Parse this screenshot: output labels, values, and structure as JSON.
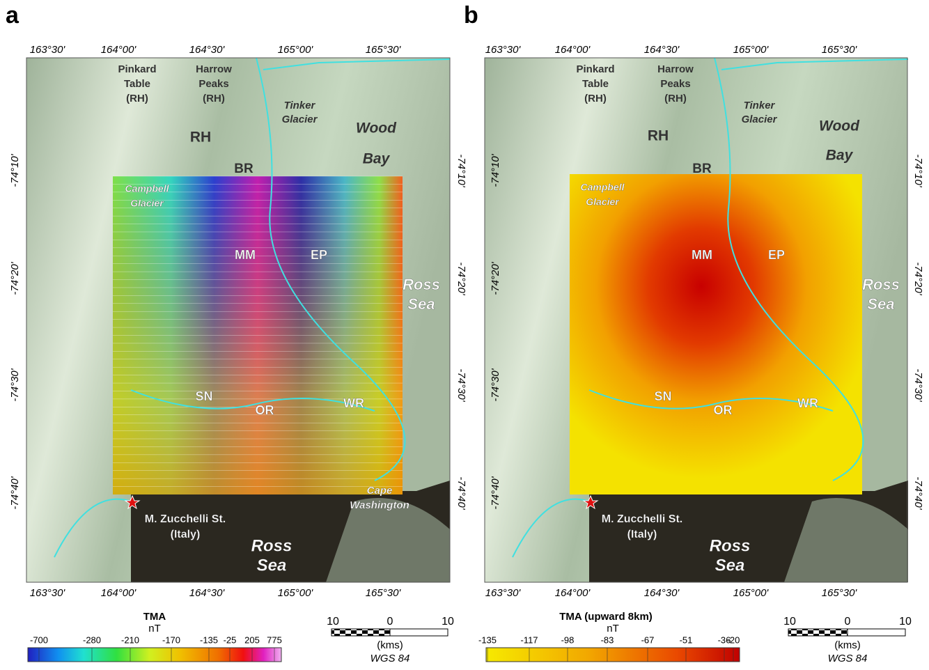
{
  "panels": [
    {
      "letter": "a",
      "lon_labels": [
        "163°30'",
        "164°00'",
        "164°30'",
        "165°00'",
        "165°30'"
      ],
      "lat_labels": [
        "-74°10'",
        "-74°20'",
        "-74°30'",
        "-74°40'"
      ],
      "places": [
        {
          "lines": [
            "Pinkard",
            "Table",
            "(RH)"
          ]
        },
        {
          "lines": [
            "Harrow",
            "Peaks",
            "(RH)"
          ]
        },
        {
          "lines": [
            "Tinker",
            "Glacier"
          ]
        },
        {
          "lines": [
            "Wood",
            "Bay"
          ]
        },
        {
          "lines": [
            "RH"
          ]
        },
        {
          "lines": [
            "BR"
          ]
        },
        {
          "lines": [
            "Campbell",
            "Glacier"
          ]
        },
        {
          "lines": [
            "MM"
          ]
        },
        {
          "lines": [
            "EP"
          ]
        },
        {
          "lines": [
            "Ross",
            "Sea"
          ]
        },
        {
          "lines": [
            "SN"
          ]
        },
        {
          "lines": [
            "OR"
          ]
        },
        {
          "lines": [
            "WR"
          ]
        },
        {
          "lines": [
            "Cape",
            "Washington"
          ]
        },
        {
          "lines": [
            "M. Zucchelli St.",
            "(Italy)"
          ]
        },
        {
          "lines": [
            "Ross",
            "Sea"
          ]
        }
      ],
      "colorbar": {
        "title": "TMA",
        "unit": "nT",
        "ticks": [
          -700,
          -280,
          -210,
          -170,
          -135,
          -25,
          205,
          775
        ]
      },
      "scalebar": {
        "left": "10",
        "mid": "0",
        "right": "10",
        "unit": "(kms)",
        "datum": "WGS 84"
      }
    },
    {
      "letter": "b",
      "lon_labels": [
        "163°30'",
        "164°00'",
        "164°30'",
        "165°00'",
        "165°30'"
      ],
      "lat_labels": [
        "-74°10'",
        "-74°20'",
        "-74°30'",
        "-74°40'"
      ],
      "places": [
        {
          "lines": [
            "Pinkard",
            "Table",
            "(RH)"
          ]
        },
        {
          "lines": [
            "Harrow",
            "Peaks",
            "(RH)"
          ]
        },
        {
          "lines": [
            "Tinker",
            "Glacier"
          ]
        },
        {
          "lines": [
            "Wood",
            "Bay"
          ]
        },
        {
          "lines": [
            "RH"
          ]
        },
        {
          "lines": [
            "BR"
          ]
        },
        {
          "lines": [
            "Campbell",
            "Glacier"
          ]
        },
        {
          "lines": [
            "MM"
          ]
        },
        {
          "lines": [
            "EP"
          ]
        },
        {
          "lines": [
            "Ross",
            "Sea"
          ]
        },
        {
          "lines": [
            "SN"
          ]
        },
        {
          "lines": [
            "OR"
          ]
        },
        {
          "lines": [
            "WR"
          ]
        },
        {
          "lines": [
            "M. Zucchelli St.",
            "(Italy)"
          ]
        },
        {
          "lines": [
            "Ross",
            "Sea"
          ]
        }
      ],
      "colorbar": {
        "title": "TMA (upward 8km)",
        "unit": "nT",
        "ticks": [
          -135,
          -117,
          -98,
          -83,
          -67,
          -51,
          -36,
          -20
        ]
      },
      "scalebar": {
        "left": "10",
        "mid": "0",
        "right": "10",
        "unit": "(kms)",
        "datum": "WGS 84"
      }
    }
  ]
}
